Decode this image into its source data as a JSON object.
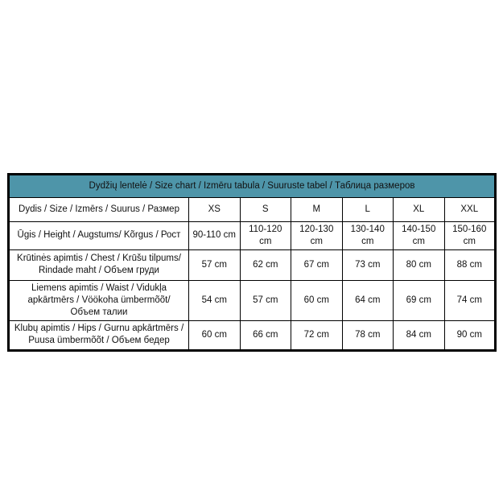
{
  "chart_data": {
    "type": "table",
    "title": "Dydžių lentelė / Size chart / Izmēru tabula / Suuruste tabel / Таблица размеров",
    "columns": [
      "Dydis / Size / Izmērs / Suurus / Размер",
      "XS",
      "S",
      "M",
      "L",
      "XL",
      "XXL"
    ],
    "rows": [
      {
        "label": "Ūgis / Height / Augstums/ Kõrgus / Рост",
        "values": [
          "90-110 cm",
          "110-120 cm",
          "120-130 cm",
          "130-140 cm",
          "140-150 cm",
          "150-160 cm"
        ]
      },
      {
        "label": "Krūtinės apimtis / Chest / Krūšu tilpums/ Rindade maht / Объем груди",
        "values": [
          "57 cm",
          "62 cm",
          "67 cm",
          "73 cm",
          "80 cm",
          "88 cm"
        ]
      },
      {
        "label": "Liemens apimtis / Waist / Vidukļa apkārtmērs / Vöökoha ümbermõõt/ Объем талии",
        "values": [
          "54 cm",
          "57 cm",
          "60 cm",
          "64 cm",
          "69 cm",
          "74 cm"
        ]
      },
      {
        "label": "Klubų apimtis / Hips / Gurnu apkārtmērs / Puusa ümbermõõt / Объем бедер",
        "values": [
          "60 cm",
          "66 cm",
          "72 cm",
          "78 cm",
          "84 cm",
          "90 cm"
        ]
      }
    ],
    "layout": {
      "legend": "none",
      "grid": "on"
    },
    "colors": {
      "header_background": "#4E95A9",
      "header_text": "#0D1F2D",
      "border": "#000000",
      "cell_text": "#111111",
      "page_background": "#FFFFFF"
    }
  }
}
